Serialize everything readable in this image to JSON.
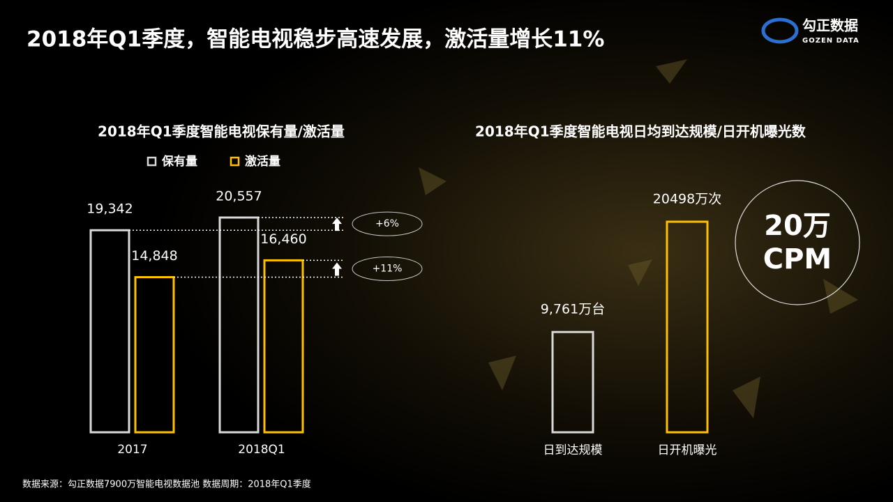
{
  "header": {
    "title": "2018年Q1季度，智能电视稳步高速发展，激活量增长11%",
    "logo": "勾正数据",
    "logo_sub": "GOZEN DATA"
  },
  "chart_data": [
    {
      "type": "bar",
      "title": "2018年Q1季度智能电视保有量/激活量",
      "categories": [
        "2017",
        "2018Q1"
      ],
      "series": [
        {
          "name": "保有量",
          "color": "#d9d9d9",
          "values": [
            19342,
            20557
          ],
          "value_labels": [
            "19,342",
            "20,557"
          ]
        },
        {
          "name": "激活量",
          "color": "#ffc000",
          "values": [
            14848,
            16460
          ],
          "value_labels": [
            "14,848",
            "16,460"
          ]
        }
      ],
      "annotations": [
        "+6%",
        "+11%"
      ]
    },
    {
      "type": "bar",
      "title": "2018年Q1季度智能电视日均到达规模/日开机曝光数",
      "categories": [
        "日到达规模",
        "日开机曝光"
      ],
      "colors": [
        "#d9d9d9",
        "#ffc000"
      ],
      "values": [
        9761,
        20498
      ],
      "value_labels": [
        "9,761万台",
        "20498万次"
      ]
    }
  ],
  "callout": {
    "line1": "20万",
    "line2": "CPM"
  },
  "footer": "数据来源：勾正数据7900万智能电视数据池  数据周期：2018年Q1季度"
}
